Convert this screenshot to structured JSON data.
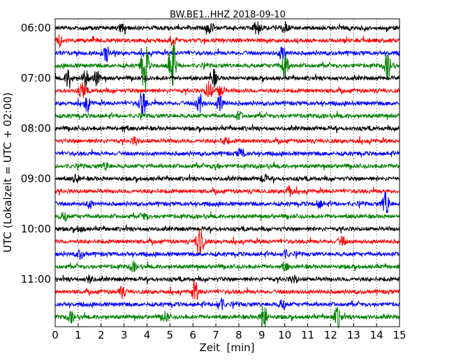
{
  "chart_data": {
    "type": "line",
    "title": "BW.BE1..HHZ 2018-09-10",
    "xlabel": "Zeit  [min]",
    "ylabel": "UTC (Lokalzeit = UTC + 02:00)",
    "xlim": [
      0,
      15
    ],
    "x_ticks": [
      "0",
      "1",
      "2",
      "3",
      "4",
      "5",
      "6",
      "7",
      "8",
      "9",
      "10",
      "11",
      "12",
      "13",
      "14",
      "15"
    ],
    "y_ticks": [
      "06:00",
      "07:00",
      "08:00",
      "09:00",
      "10:00",
      "11:00"
    ],
    "grid": "vertical-dotted",
    "trace_colors": [
      "#000000",
      "#ff0000",
      "#0000ff",
      "#008000"
    ],
    "trace_count": 24,
    "trace_interval_min": 15,
    "bursts": [
      {
        "trace": 0,
        "at": 2.9,
        "amp": 6
      },
      {
        "trace": 0,
        "at": 6.7,
        "amp": 8
      },
      {
        "trace": 0,
        "at": 8.8,
        "amp": 9
      },
      {
        "trace": 0,
        "at": 10.0,
        "amp": 8
      },
      {
        "trace": 1,
        "at": 0.2,
        "amp": 8
      },
      {
        "trace": 1,
        "at": 5.1,
        "amp": 6
      },
      {
        "trace": 2,
        "at": 2.2,
        "amp": 12
      },
      {
        "trace": 2,
        "at": 9.9,
        "amp": 10
      },
      {
        "trace": 3,
        "at": 3.9,
        "amp": 40
      },
      {
        "trace": 3,
        "at": 5.1,
        "amp": 40
      },
      {
        "trace": 3,
        "at": 10.0,
        "amp": 20
      },
      {
        "trace": 3,
        "at": 14.5,
        "amp": 18
      },
      {
        "trace": 4,
        "at": 0.6,
        "amp": 14
      },
      {
        "trace": 4,
        "at": 1.3,
        "amp": 12
      },
      {
        "trace": 4,
        "at": 1.8,
        "amp": 10
      },
      {
        "trace": 4,
        "at": 6.9,
        "amp": 12
      },
      {
        "trace": 5,
        "at": 1.2,
        "amp": 12
      },
      {
        "trace": 5,
        "at": 6.7,
        "amp": 14
      },
      {
        "trace": 5,
        "at": 7.2,
        "amp": 10
      },
      {
        "trace": 6,
        "at": 1.4,
        "amp": 10
      },
      {
        "trace": 6,
        "at": 3.8,
        "amp": 18
      },
      {
        "trace": 6,
        "at": 6.3,
        "amp": 14
      },
      {
        "trace": 6,
        "at": 7.2,
        "amp": 14
      },
      {
        "trace": 7,
        "at": 8.0,
        "amp": 5
      },
      {
        "trace": 8,
        "at": 3.0,
        "amp": 4
      },
      {
        "trace": 9,
        "at": 3.5,
        "amp": 5
      },
      {
        "trace": 9,
        "at": 7.4,
        "amp": 6
      },
      {
        "trace": 10,
        "at": 8.1,
        "amp": 7
      },
      {
        "trace": 11,
        "at": 2.2,
        "amp": 5
      },
      {
        "trace": 11,
        "at": 7.0,
        "amp": 4
      },
      {
        "trace": 12,
        "at": 0.9,
        "amp": 6
      },
      {
        "trace": 12,
        "at": 9.1,
        "amp": 5
      },
      {
        "trace": 13,
        "at": 10.2,
        "amp": 7
      },
      {
        "trace": 14,
        "at": 1.5,
        "amp": 5
      },
      {
        "trace": 14,
        "at": 11.5,
        "amp": 5
      },
      {
        "trace": 14,
        "at": 14.4,
        "amp": 18
      },
      {
        "trace": 15,
        "at": 0.4,
        "amp": 6
      },
      {
        "trace": 15,
        "at": 3.9,
        "amp": 4
      },
      {
        "trace": 16,
        "at": 1.1,
        "amp": 4
      },
      {
        "trace": 17,
        "at": 6.3,
        "amp": 30
      },
      {
        "trace": 17,
        "at": 12.5,
        "amp": 6
      },
      {
        "trace": 18,
        "at": 1.1,
        "amp": 6
      },
      {
        "trace": 18,
        "at": 10.0,
        "amp": 5
      },
      {
        "trace": 19,
        "at": 3.4,
        "amp": 6
      },
      {
        "trace": 19,
        "at": 10.0,
        "amp": 6
      },
      {
        "trace": 20,
        "at": 1.5,
        "amp": 5
      },
      {
        "trace": 20,
        "at": 10.4,
        "amp": 6
      },
      {
        "trace": 21,
        "at": 2.9,
        "amp": 8
      },
      {
        "trace": 21,
        "at": 6.1,
        "amp": 14
      },
      {
        "trace": 22,
        "at": 7.2,
        "amp": 10
      },
      {
        "trace": 22,
        "at": 9.9,
        "amp": 7
      },
      {
        "trace": 23,
        "at": 0.7,
        "amp": 7
      },
      {
        "trace": 23,
        "at": 4.8,
        "amp": 7
      },
      {
        "trace": 23,
        "at": 9.1,
        "amp": 18
      },
      {
        "trace": 23,
        "at": 12.3,
        "amp": 14
      }
    ]
  }
}
